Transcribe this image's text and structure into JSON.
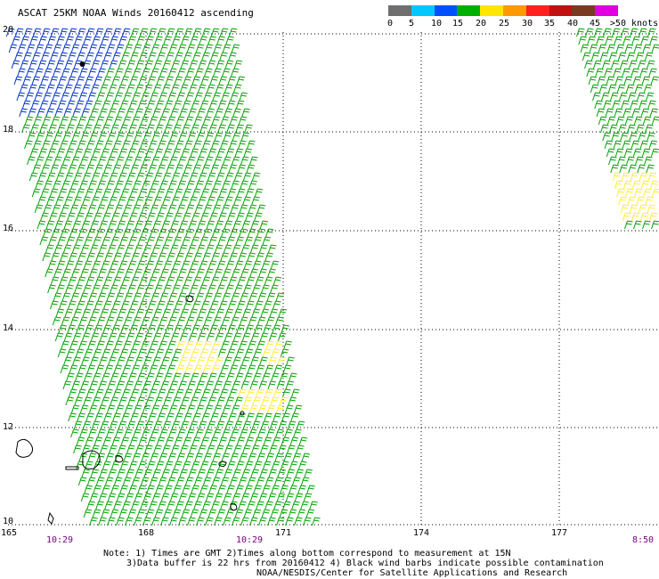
{
  "title": "ASCAT 25KM NOAA Winds 20160412 ascending",
  "colorbar": {
    "labels": [
      "0",
      "5",
      "10",
      "15",
      "20",
      "25",
      "30",
      "35",
      "40",
      "45",
      ">50 knots"
    ],
    "colors": [
      "#6e6e6e",
      "#00c8ff",
      "#0050ff",
      "#00b000",
      "#ffe600",
      "#ff9900",
      "#ff2020",
      "#c01010",
      "#7a3a20",
      "#e000e0",
      "#5a00a0"
    ]
  },
  "map": {
    "lat_labels": [
      "20",
      "18",
      "16",
      "14",
      "12",
      "10"
    ],
    "lon_labels": [
      "165",
      "168",
      "171",
      "174",
      "177"
    ],
    "time_labels": [
      "10:29",
      "10:29",
      "8:50"
    ],
    "barb_colors": {
      "low": "#0030c8",
      "mid": "#00a000",
      "high": "#ffee33",
      "contam": "#000000"
    }
  },
  "notes": [
    "Note: 1) Times are GMT 2)Times along bottom correspond to measurement at 15N",
    "3)Data buffer is 22 hrs from 20160412 4) Black wind barbs indicate possible contamination",
    "NOAA/NESDIS/Center for Satellite Applications and Research"
  ]
}
